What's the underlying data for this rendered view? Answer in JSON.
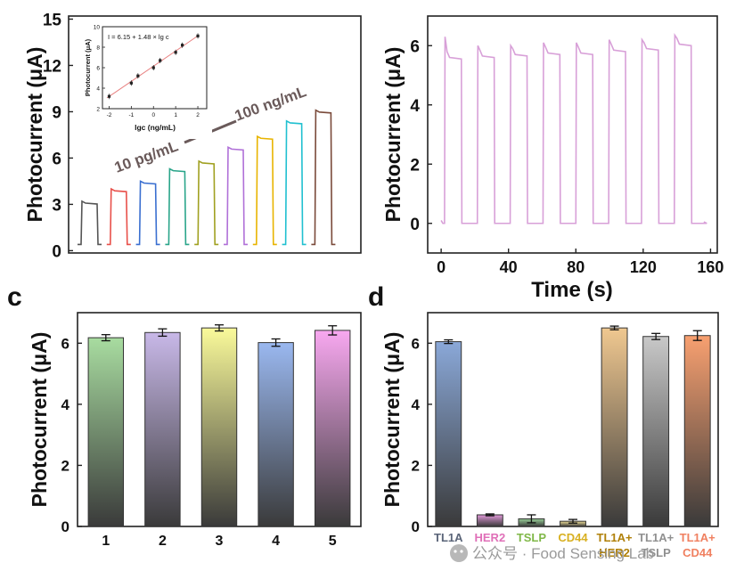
{
  "watermark": "公众号 · Food Sensing Lab",
  "chart_data": [
    {
      "id": "panel_a",
      "type": "line",
      "ylabel": "Photocurrent (μA)",
      "ylim": [
        0,
        15
      ],
      "yticks": [
        "0",
        "3",
        "6",
        "9",
        "12",
        "15"
      ],
      "series": [
        {
          "name": "trace1",
          "color": "#555555",
          "baseline": 0.4,
          "peak": 3.2
        },
        {
          "name": "trace2",
          "color": "#e8504a",
          "baseline": 0.4,
          "peak": 4.0
        },
        {
          "name": "trace3",
          "color": "#3a6fd0",
          "baseline": 0.4,
          "peak": 4.5
        },
        {
          "name": "trace4",
          "color": "#2aa58a",
          "baseline": 0.4,
          "peak": 5.3
        },
        {
          "name": "trace5",
          "color": "#a0a020",
          "baseline": 0.4,
          "peak": 5.8
        },
        {
          "name": "trace6",
          "color": "#b070d8",
          "baseline": 0.4,
          "peak": 6.7
        },
        {
          "name": "trace7",
          "color": "#e8b400",
          "baseline": 0.4,
          "peak": 7.4
        },
        {
          "name": "trace8",
          "color": "#20c0d0",
          "baseline": 0.4,
          "peak": 8.4
        },
        {
          "name": "trace9",
          "color": "#7a4a3a",
          "baseline": 0.4,
          "peak": 9.1
        }
      ],
      "annotations": {
        "low": "10 pg/mL",
        "high": "100 ng/mL"
      },
      "inset": {
        "type": "scatter",
        "equation": "I = 6.15 + 1.48 × lg c",
        "xlabel": "lgc (ng/mL)",
        "ylabel": "Photocurrent (μA)",
        "xlim": [
          -2.3,
          2.4
        ],
        "ylim": [
          2,
          10
        ],
        "xticks": [
          "-2",
          "-1",
          "0",
          "1",
          "2"
        ],
        "yticks": [
          "2",
          "4",
          "6",
          "8",
          "10"
        ],
        "x": [
          -2,
          -1,
          -0.7,
          0,
          0.3,
          1,
          1.3,
          2
        ],
        "y": [
          3.2,
          4.5,
          5.2,
          6.0,
          6.7,
          7.5,
          8.2,
          9.1
        ]
      }
    },
    {
      "id": "panel_b",
      "type": "line",
      "xlabel": "Time (s)",
      "ylabel": "Photocurrent (μA)",
      "xlim": [
        -8,
        164
      ],
      "ylim": [
        -1,
        7
      ],
      "xticks": [
        "0",
        "40",
        "80",
        "120",
        "160"
      ],
      "yticks": [
        "0",
        "2",
        "4",
        "6"
      ],
      "color": "#d8a0d8",
      "cycles": 8,
      "period": 19.5,
      "on_duration": 10,
      "baseline": 0.0,
      "spike": [
        6.3,
        6.0,
        6.0,
        6.1,
        6.1,
        6.2,
        6.2,
        6.35
      ],
      "plateau": [
        5.55,
        5.6,
        5.65,
        5.7,
        5.7,
        5.8,
        5.85,
        6.0
      ]
    },
    {
      "id": "panel_c",
      "label": "c",
      "type": "bar",
      "ylabel": "Photocurrent (μA)",
      "ylim": [
        0,
        7
      ],
      "yticks": [
        "0",
        "2",
        "4",
        "6"
      ],
      "categories": [
        "1",
        "2",
        "3",
        "4",
        "5"
      ],
      "values": [
        6.18,
        6.35,
        6.5,
        6.02,
        6.42
      ],
      "errors": [
        0.1,
        0.12,
        0.1,
        0.12,
        0.15
      ],
      "colors": [
        "#a8dca0",
        "#c8b8e8",
        "#fafa9a",
        "#9ab8f0",
        "#f8a8f0"
      ]
    },
    {
      "id": "panel_d",
      "label": "d",
      "type": "bar",
      "ylabel": "Photocurrent (μA)",
      "ylim": [
        0,
        7
      ],
      "yticks": [
        "0",
        "2",
        "4",
        "6"
      ],
      "categories": [
        "TL1A",
        "HER2",
        "TSLP",
        "CD44",
        "TL1A+HER2",
        "TL1A+TSLP",
        "TL1A+CD44"
      ],
      "cat_lines": [
        [
          "TL1A"
        ],
        [
          "HER2"
        ],
        [
          "TSLP"
        ],
        [
          "CD44"
        ],
        [
          "TL1A+",
          "HER2"
        ],
        [
          "TL1A+",
          "TSLP"
        ],
        [
          "TL1A+",
          "CD44"
        ]
      ],
      "label_colors": [
        "#5a6478",
        "#e070b8",
        "#80b848",
        "#d8b020",
        "#b08008",
        "#909090",
        "#f08060"
      ],
      "values": [
        6.05,
        0.38,
        0.25,
        0.17,
        6.5,
        6.22,
        6.25
      ],
      "errors": [
        0.06,
        0.03,
        0.13,
        0.06,
        0.06,
        0.1,
        0.16
      ],
      "colors": [
        "#8aa8d8",
        "#e098d8",
        "#98d098",
        "#f0e098",
        "#f0c890",
        "#c8c8c8",
        "#f8a070"
      ]
    }
  ]
}
